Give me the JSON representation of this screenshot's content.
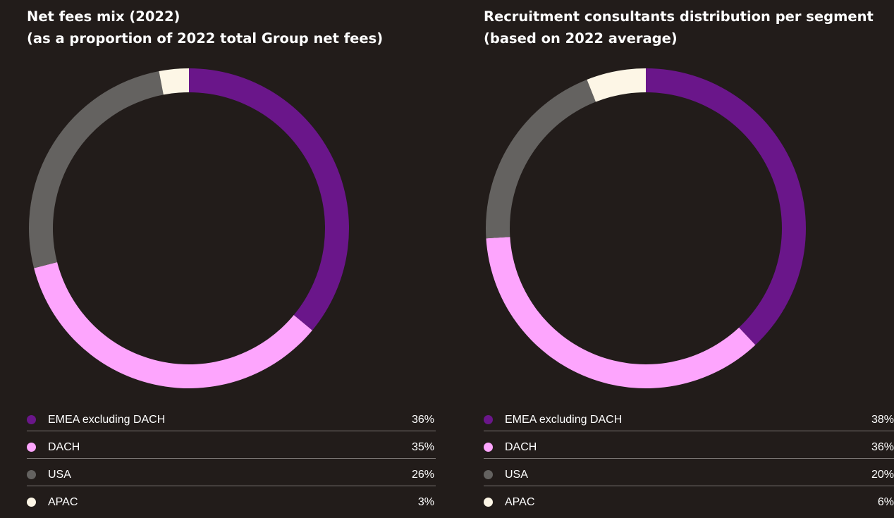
{
  "chart_data": [
    {
      "type": "pie",
      "title": "Net fees mix (2022)",
      "subtitle": "(as a proportion of 2022 total Group net fees)",
      "categories": [
        "EMEA excluding DACH",
        "DACH",
        "USA",
        "APAC"
      ],
      "values": [
        36,
        35,
        26,
        3
      ],
      "value_labels": [
        "36%",
        "35%",
        "26%",
        "3%"
      ],
      "colors": [
        "#6a168a",
        "#fda5fd",
        "#646260",
        "#fdf6e6"
      ],
      "donut": true,
      "legend": "bottom"
    },
    {
      "type": "pie",
      "title": "Recruitment consultants distribution per segment",
      "subtitle": "(based on 2022 average)",
      "categories": [
        "EMEA excluding DACH",
        "DACH",
        "USA",
        "APAC"
      ],
      "values": [
        38,
        36,
        20,
        6
      ],
      "value_labels": [
        "38%",
        "36%",
        "20%",
        "6%"
      ],
      "colors": [
        "#6a168a",
        "#fda5fd",
        "#646260",
        "#fdf6e6"
      ],
      "donut": true,
      "legend": "bottom"
    }
  ]
}
